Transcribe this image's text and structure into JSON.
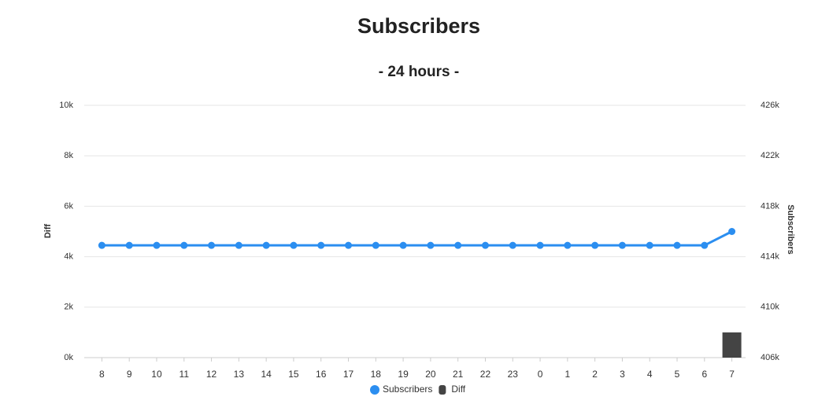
{
  "chart_data": {
    "type": "combo",
    "title": "Subscribers",
    "subtitle": "- 24 hours -",
    "y_label": "Diff",
    "y2_label": "Subscribers",
    "categories": [
      "8",
      "9",
      "10",
      "11",
      "12",
      "13",
      "14",
      "15",
      "16",
      "17",
      "18",
      "19",
      "20",
      "21",
      "22",
      "23",
      "0",
      "1",
      "2",
      "3",
      "4",
      "5",
      "6",
      "7"
    ],
    "series": [
      {
        "name": "Subscribers",
        "type": "line",
        "axis": "y2",
        "color": "#2b8ef0",
        "values": [
          414900,
          414900,
          414900,
          414900,
          414900,
          414900,
          414900,
          414900,
          414900,
          414900,
          414900,
          414900,
          414900,
          414900,
          414900,
          414900,
          414900,
          414900,
          414900,
          414900,
          414900,
          414900,
          414900,
          416000
        ]
      },
      {
        "name": "Diff",
        "type": "bar",
        "axis": "y",
        "color": "#444444",
        "values": [
          0,
          0,
          0,
          0,
          0,
          0,
          0,
          0,
          0,
          0,
          0,
          0,
          0,
          0,
          0,
          0,
          0,
          0,
          0,
          0,
          0,
          0,
          0,
          1000
        ]
      }
    ],
    "ylim": [
      0,
      10000
    ],
    "yticks": [
      {
        "value": 0,
        "label": "0k"
      },
      {
        "value": 2000,
        "label": "2k"
      },
      {
        "value": 4000,
        "label": "4k"
      },
      {
        "value": 6000,
        "label": "6k"
      },
      {
        "value": 8000,
        "label": "8k"
      },
      {
        "value": 10000,
        "label": "10k"
      }
    ],
    "y2lim": [
      406000,
      426000
    ],
    "y2ticks": [
      {
        "value": 406000,
        "label": "406k"
      },
      {
        "value": 410000,
        "label": "410k"
      },
      {
        "value": 414000,
        "label": "414k"
      },
      {
        "value": 418000,
        "label": "418k"
      },
      {
        "value": 422000,
        "label": "422k"
      },
      {
        "value": 426000,
        "label": "426k"
      }
    ],
    "grid": true,
    "legend": "bottom"
  }
}
